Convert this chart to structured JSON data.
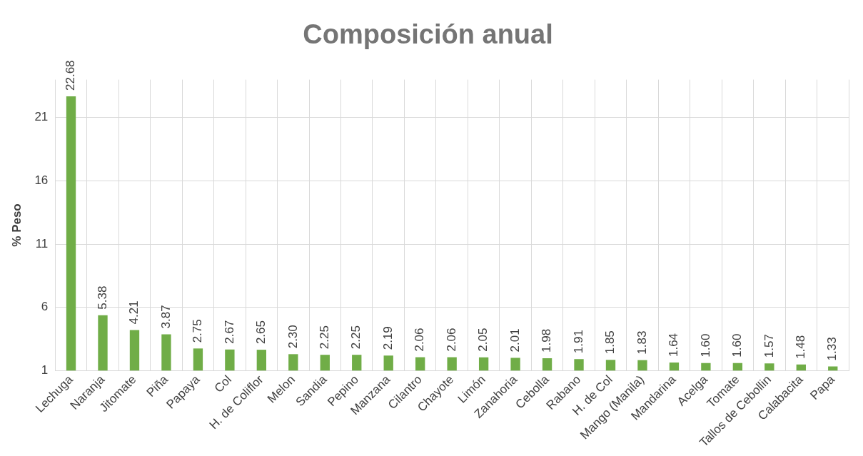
{
  "chart_data": {
    "type": "bar",
    "title": "Composición anual",
    "ylabel": "% Peso",
    "categories": [
      "Lechuga",
      "Naranja",
      "Jitomate",
      "Piña",
      "Papaya",
      "Col",
      "H. de Coliflor",
      "Melon",
      "Sandia",
      "Pepino",
      "Manzana",
      "Cilantro",
      "Chayote",
      "Limón",
      "Zanahoria",
      "Cebolla",
      "Rabano",
      "H. de Col",
      "Mango (Manila)",
      "Mandarina",
      "Acelga",
      "Tomate",
      "Tallos de Cebollin",
      "Calabacita",
      "Papa"
    ],
    "values": [
      22.68,
      5.38,
      4.21,
      3.87,
      2.75,
      2.67,
      2.65,
      2.3,
      2.25,
      2.25,
      2.19,
      2.06,
      2.06,
      2.05,
      2.01,
      1.98,
      1.91,
      1.85,
      1.83,
      1.64,
      1.6,
      1.6,
      1.57,
      1.48,
      1.33
    ],
    "value_labels": [
      "22.68",
      "5.38",
      "4.21",
      "3.87",
      "2.75",
      "2.67",
      "2.65",
      "2.30",
      "2.25",
      "2.25",
      "2.19",
      "2.06",
      "2.06",
      "2.05",
      "2.01",
      "1.98",
      "1.91",
      "1.85",
      "1.83",
      "1.64",
      "1.60",
      "1.60",
      "1.57",
      "1.48",
      "1.33"
    ],
    "color": "#70ad47",
    "ylim": [
      1,
      24
    ],
    "yticks": [
      1,
      6,
      11,
      16,
      21
    ],
    "grid": true,
    "legend": false
  }
}
